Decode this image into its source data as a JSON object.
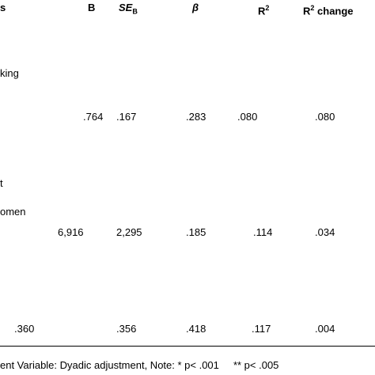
{
  "header": {
    "col0": "s",
    "b": "B",
    "se": {
      "main": "SE",
      "sub": "B"
    },
    "beta": "β",
    "r2": {
      "main": "R",
      "sup": "2"
    },
    "r2change": {
      "main": "R",
      "sup": "2",
      "rest": " change"
    }
  },
  "rows": [
    {
      "labels": [
        "king"
      ],
      "cells": [
        ".764",
        ".167",
        ".283",
        ".080",
        ".080"
      ]
    },
    {
      "labels": [
        "t",
        "omen"
      ],
      "cells": [
        "6,916",
        "2,295",
        ".185",
        ".114",
        ".034"
      ]
    },
    {
      "labels": [],
      "cells": [
        ".360",
        ".356",
        ".418",
        ".117",
        ".004"
      ]
    }
  ],
  "footer": "ent Variable: Dyadic adjustment, Note: * p< .001     ** p< .005"
}
